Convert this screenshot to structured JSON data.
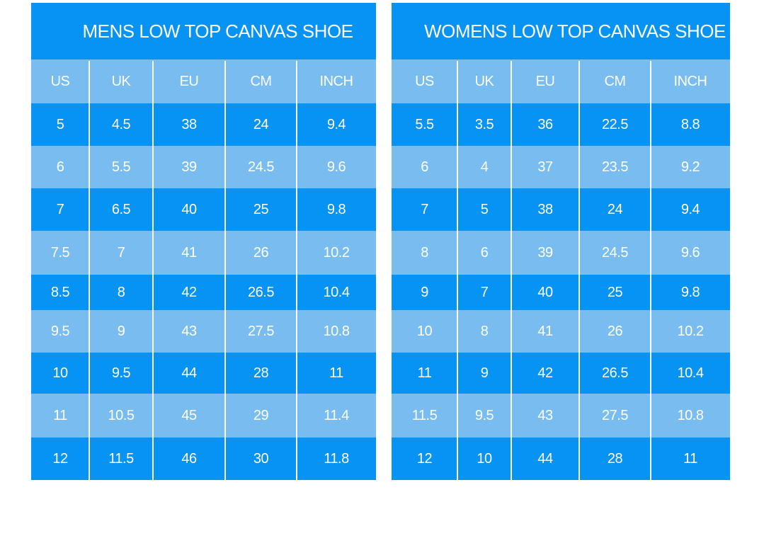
{
  "tables": [
    {
      "title": "MENS LOW TOP CANVAS SHOE",
      "header": [
        "US",
        "UK",
        "EU",
        "CM",
        "INCH"
      ],
      "rows": [
        [
          "5",
          "4.5",
          "38",
          "24",
          "9.4"
        ],
        [
          "6",
          "5.5",
          "39",
          "24.5",
          "9.6"
        ],
        [
          "7",
          "6.5",
          "40",
          "25",
          "9.8"
        ],
        [
          "7.5",
          "7",
          "41",
          "26",
          "10.2"
        ],
        [
          "8.5",
          "8",
          "42",
          "26.5",
          "10.4"
        ],
        [
          "9.5",
          "9",
          "43",
          "27.5",
          "10.8"
        ],
        [
          "10",
          "9.5",
          "44",
          "28",
          "11"
        ],
        [
          "11",
          "10.5",
          "45",
          "29",
          "11.4"
        ],
        [
          "12",
          "11.5",
          "46",
          "30",
          "11.8"
        ]
      ]
    },
    {
      "title": "WOMENS LOW TOP CANVAS SHOE",
      "header": [
        "US",
        "UK",
        "EU",
        "CM",
        "INCH"
      ],
      "rows": [
        [
          "5.5",
          "3.5",
          "36",
          "22.5",
          "8.8"
        ],
        [
          "6",
          "4",
          "37",
          "23.5",
          "9.2"
        ],
        [
          "7",
          "5",
          "38",
          "24",
          "9.4"
        ],
        [
          "8",
          "6",
          "39",
          "24.5",
          "9.6"
        ],
        [
          "9",
          "7",
          "40",
          "25",
          "9.8"
        ],
        [
          "10",
          "8",
          "41",
          "26",
          "10.2"
        ],
        [
          "11",
          "9",
          "42",
          "26.5",
          "10.4"
        ],
        [
          "11.5",
          "9.5",
          "43",
          "27.5",
          "10.8"
        ],
        [
          "12",
          "10",
          "44",
          "28",
          "11"
        ]
      ]
    }
  ]
}
